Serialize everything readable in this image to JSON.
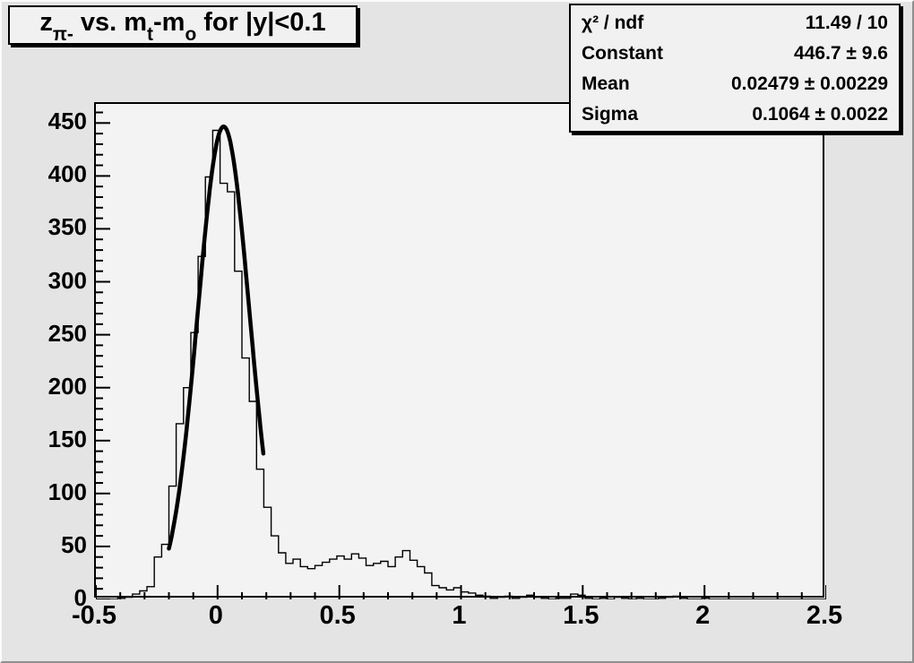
{
  "colors": {
    "canvas_bg": "#e4e4e4",
    "frame_bg": "#f3f3f3",
    "pave_bg": "#f1f1f1",
    "line": "#000000"
  },
  "title": {
    "text": "z_{pi-} vs. m_{t}-m_{o} for |y|<0.1",
    "segments": [
      {
        "t": "z",
        "sub": false
      },
      {
        "t": "π-",
        "sub": true
      },
      {
        "t": " vs. m",
        "sub": false
      },
      {
        "t": "t",
        "sub": true
      },
      {
        "t": "-m",
        "sub": false
      },
      {
        "t": "o",
        "sub": true
      },
      {
        "t": " for |y|<0.1",
        "sub": false
      }
    ]
  },
  "stats": {
    "rows": [
      {
        "label": "χ² / ndf",
        "value": "11.49 / 10"
      },
      {
        "label": "Constant",
        "value": "446.7 ± 9.6"
      },
      {
        "label": "Mean",
        "value": "0.02479 ± 0.00229"
      },
      {
        "label": "Sigma",
        "value": "0.1064 ± 0.0022"
      }
    ]
  },
  "chart_data": {
    "type": "bar",
    "subtype": "root-histogram-with-gaussian-fit",
    "title": "z_{pi-} vs. m_t-m_o for |y|<0.1",
    "xlabel": "",
    "ylabel": "",
    "grid": false,
    "legend_position": "none",
    "x_axis": {
      "min": -0.5,
      "max": 2.5,
      "major_ticks": [
        -0.5,
        0,
        0.5,
        1,
        1.5,
        2,
        2.5
      ],
      "major_labels": [
        "-0.5",
        "0",
        "0.5",
        "1",
        "1.5",
        "2",
        "2.5"
      ],
      "minor_step": 0.1
    },
    "y_axis": {
      "min": 0,
      "max": 468,
      "major_ticks": [
        0,
        50,
        100,
        150,
        200,
        250,
        300,
        350,
        400,
        450
      ],
      "major_labels": [
        "0",
        "50",
        "100",
        "150",
        "200",
        "250",
        "300",
        "350",
        "400",
        "450"
      ],
      "minor_step": 10
    },
    "histogram": {
      "x_start": -0.5,
      "bin_width": 0.03,
      "values": [
        0,
        0,
        0,
        1,
        2,
        5,
        8,
        12,
        40,
        52,
        107,
        166,
        200,
        252,
        324,
        399,
        443,
        393,
        385,
        310,
        228,
        187,
        123,
        87,
        60,
        44,
        34,
        38,
        31,
        29,
        32,
        35,
        38,
        41,
        38,
        43,
        39,
        32,
        34,
        36,
        31,
        40,
        46,
        37,
        31,
        25,
        13,
        11,
        9,
        11,
        7,
        6,
        4,
        3,
        1,
        2,
        3,
        1,
        2,
        4,
        2,
        1,
        0,
        1,
        1,
        5,
        4,
        1,
        0,
        1,
        0,
        2,
        1,
        0,
        1,
        0,
        0,
        1,
        2,
        3,
        1,
        0,
        0,
        1,
        0,
        0,
        0,
        0,
        0,
        0,
        0,
        0,
        0,
        0,
        0,
        0,
        0,
        0,
        0,
        0
      ]
    },
    "fit": {
      "shape": "gaussian",
      "constant": 446.7,
      "mean": 0.02479,
      "sigma": 0.1064,
      "chi2": 11.49,
      "ndf": 10,
      "draw_range": [
        -0.2,
        0.19
      ],
      "line_width": 4.5
    }
  }
}
